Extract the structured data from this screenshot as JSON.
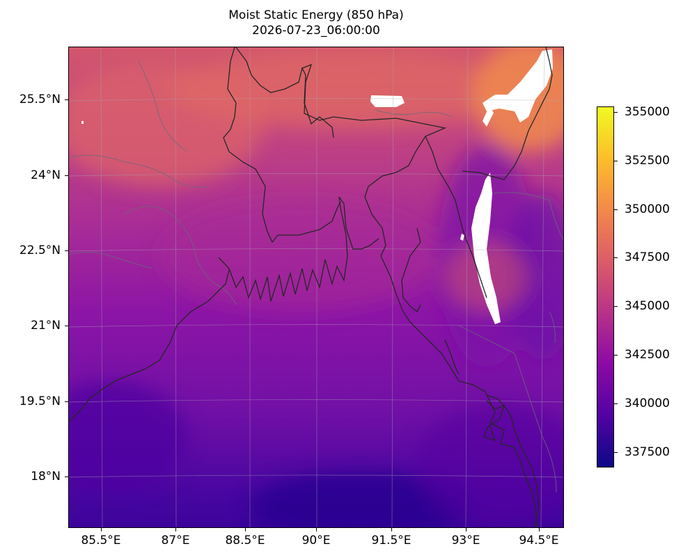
{
  "title": {
    "line1": "Moist Static Energy (850 hPa)",
    "line2": "2026-07-23_06:00:00"
  },
  "map": {
    "y_ticks": [
      "25.5°N",
      "24°N",
      "22.5°N",
      "21°N",
      "19.5°N",
      "18°N"
    ],
    "x_ticks": [
      "85.5°E",
      "87°E",
      "88.5°E",
      "90°E",
      "91.5°E",
      "93°E",
      "94.5°E"
    ],
    "extent": {
      "lon": [
        84.85,
        94.85
      ],
      "lat": [
        17.0,
        26.0
      ]
    },
    "projection": "lambert-conformal",
    "gridlines": true
  },
  "colorbar": {
    "colormap": "plasma",
    "range": [
      336800,
      355300
    ],
    "ticks": [
      "355000",
      "352500",
      "350000",
      "347500",
      "345000",
      "342500",
      "340000",
      "337500"
    ],
    "colors": [
      "#0d0887",
      "#5302a3",
      "#8b0aa5",
      "#b83289",
      "#db5c68",
      "#f48849",
      "#febd2a",
      "#f0f921"
    ]
  },
  "colors": {
    "coastline": "#222222",
    "borders": "#6a6a6a",
    "gridlines": "#a0a0a0",
    "missing": "#ffffff"
  }
}
